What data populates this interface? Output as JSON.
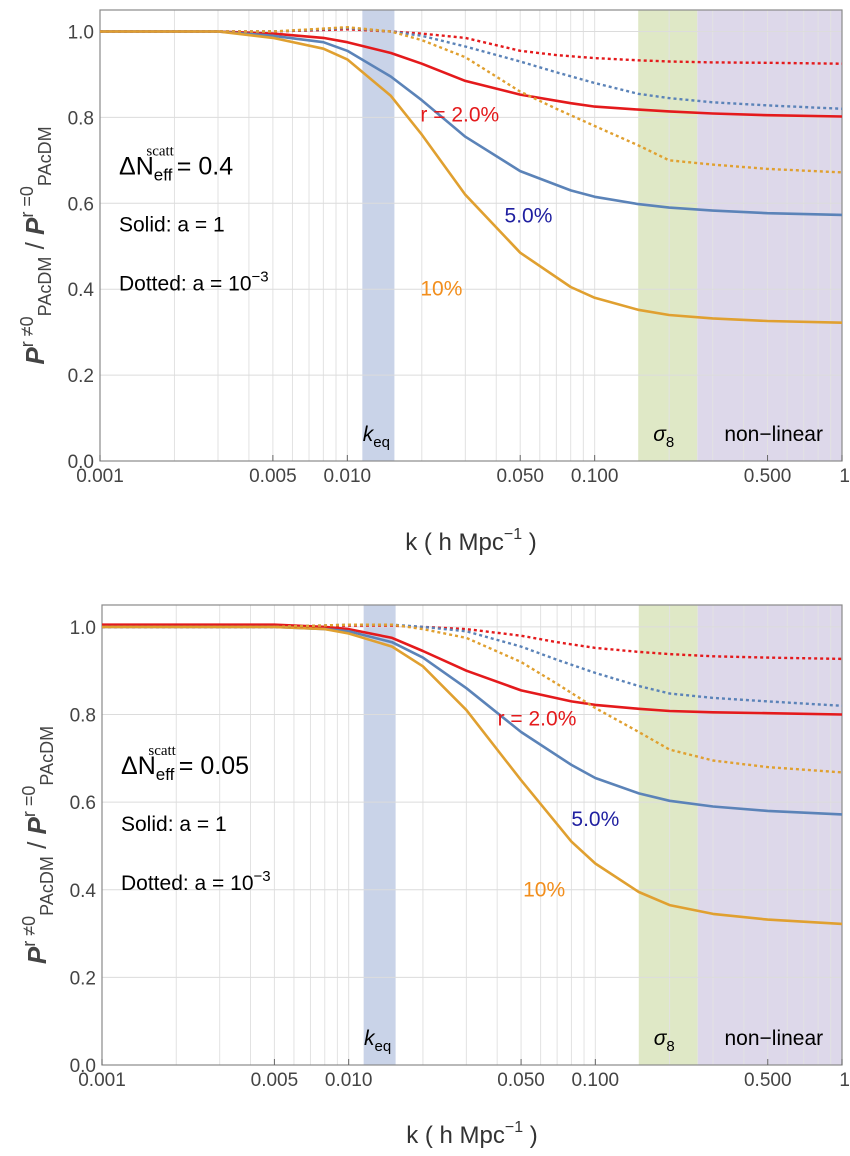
{
  "chart_data": [
    {
      "type": "line",
      "xlabel_main": "k ( h Mpc",
      "xlabel_sup": "−1",
      "xlabel_tail": ")",
      "ylabel_num": "P",
      "ylabel_num_sup": "r ≠0",
      "ylabel_num_sub": "PAcDM",
      "ylabel_sep": "/",
      "ylabel_den": "P",
      "ylabel_den_sup": "r =0",
      "ylabel_den_sub": "PAcDM",
      "xscale": "log",
      "xlim": [
        0.001,
        1
      ],
      "ylim": [
        0,
        1.05
      ],
      "xticks": [
        {
          "v": 0.001,
          "label": "0.001"
        },
        {
          "v": 0.005,
          "label": "0.005"
        },
        {
          "v": 0.01,
          "label": "0.010"
        },
        {
          "v": 0.05,
          "label": "0.050"
        },
        {
          "v": 0.1,
          "label": "0.100"
        },
        {
          "v": 0.5,
          "label": "0.500"
        },
        {
          "v": 1,
          "label": "1"
        }
      ],
      "yticks": [
        {
          "v": 0,
          "label": "0.0"
        },
        {
          "v": 0.2,
          "label": "0.2"
        },
        {
          "v": 0.4,
          "label": "0.4"
        },
        {
          "v": 0.6,
          "label": "0.6"
        },
        {
          "v": 0.8,
          "label": "0.8"
        },
        {
          "v": 1,
          "label": "1.0"
        }
      ],
      "grid": true,
      "regions": [
        {
          "name": "keq",
          "label_main": "k",
          "label_sub": "eq",
          "x0": 0.0115,
          "x1": 0.0155,
          "color": "#c9d3e8"
        },
        {
          "name": "sigma8",
          "label_main": "σ",
          "label_sub": "8",
          "x0": 0.15,
          "x1": 0.26,
          "color": "#dfe8c6"
        },
        {
          "name": "nonlinear",
          "label": "non−linear",
          "x0": 0.26,
          "x1": 1.0,
          "color": "#ddd8ea"
        }
      ],
      "annotation": {
        "delta_prefix": "ΔN",
        "delta_sub": "eff",
        "delta_sup": "scatt",
        "delta_value": "= 0.4",
        "solid_label": "Solid: a = 1",
        "dotted_prefix": "Dotted: a = 10",
        "dotted_sup": "−3"
      },
      "curve_labels": [
        {
          "text": "r = 2.0%",
          "color": "#e41a1c",
          "k": 0.0285,
          "y": 0.79
        },
        {
          "text": "5.0%",
          "color": "#1f1fa0",
          "k": 0.054,
          "y": 0.555
        },
        {
          "text": "10%",
          "color": "#f28e1c",
          "k": 0.024,
          "y": 0.385
        }
      ],
      "series": [
        {
          "r": "2.0%",
          "epoch": "a = 1",
          "style": "solid",
          "color": "#e41a1c",
          "x": [
            0.001,
            0.003,
            0.005,
            0.008,
            0.01,
            0.015,
            0.02,
            0.03,
            0.05,
            0.08,
            0.1,
            0.15,
            0.2,
            0.3,
            0.5,
            1
          ],
          "y": [
            1.0,
            1.0,
            0.995,
            0.985,
            0.975,
            0.95,
            0.925,
            0.885,
            0.853,
            0.833,
            0.825,
            0.818,
            0.814,
            0.809,
            0.805,
            0.802
          ]
        },
        {
          "r": "5.0%",
          "epoch": "a = 1",
          "style": "solid",
          "color": "#5b83b8",
          "x": [
            0.001,
            0.003,
            0.005,
            0.008,
            0.01,
            0.015,
            0.02,
            0.03,
            0.05,
            0.08,
            0.1,
            0.15,
            0.2,
            0.3,
            0.5,
            1
          ],
          "y": [
            1.0,
            1.0,
            0.99,
            0.975,
            0.955,
            0.895,
            0.84,
            0.755,
            0.675,
            0.63,
            0.615,
            0.598,
            0.59,
            0.583,
            0.577,
            0.573
          ]
        },
        {
          "r": "10%",
          "epoch": "a = 1",
          "style": "solid",
          "color": "#e0a030",
          "x": [
            0.001,
            0.003,
            0.005,
            0.008,
            0.01,
            0.015,
            0.02,
            0.03,
            0.05,
            0.08,
            0.1,
            0.15,
            0.2,
            0.3,
            0.5,
            1
          ],
          "y": [
            1.0,
            1.0,
            0.985,
            0.96,
            0.935,
            0.85,
            0.76,
            0.62,
            0.485,
            0.405,
            0.38,
            0.352,
            0.34,
            0.332,
            0.326,
            0.322
          ]
        },
        {
          "r": "2.0%",
          "epoch": "a = 10^-3",
          "style": "dotted",
          "color": "#e41a1c",
          "x": [
            0.001,
            0.005,
            0.01,
            0.015,
            0.02,
            0.03,
            0.05,
            0.07,
            0.1,
            0.15,
            0.2,
            0.3,
            0.5,
            1
          ],
          "y": [
            1.0,
            1.0,
            1.005,
            1.0,
            0.995,
            0.985,
            0.955,
            0.945,
            0.938,
            0.933,
            0.93,
            0.928,
            0.927,
            0.925
          ]
        },
        {
          "r": "5.0%",
          "epoch": "a = 10^-3",
          "style": "dotted",
          "color": "#5b83b8",
          "x": [
            0.001,
            0.005,
            0.01,
            0.015,
            0.02,
            0.03,
            0.05,
            0.07,
            0.1,
            0.15,
            0.2,
            0.3,
            0.5,
            1
          ],
          "y": [
            1.0,
            1.0,
            1.008,
            1.0,
            0.99,
            0.965,
            0.93,
            0.905,
            0.88,
            0.855,
            0.845,
            0.835,
            0.828,
            0.82
          ]
        },
        {
          "r": "10%",
          "epoch": "a = 10^-3",
          "style": "dotted",
          "color": "#e0a030",
          "x": [
            0.001,
            0.005,
            0.01,
            0.015,
            0.02,
            0.03,
            0.05,
            0.07,
            0.1,
            0.15,
            0.2,
            0.3,
            0.5,
            1
          ],
          "y": [
            1.0,
            1.0,
            1.01,
            1.0,
            0.98,
            0.94,
            0.86,
            0.82,
            0.78,
            0.735,
            0.7,
            0.69,
            0.68,
            0.672
          ]
        }
      ]
    },
    {
      "type": "line",
      "xlabel_main": "k ( h Mpc",
      "xlabel_sup": "−1",
      "xlabel_tail": ")",
      "ylabel_num": "P",
      "ylabel_num_sup": "r ≠0",
      "ylabel_num_sub": "PAcDM",
      "ylabel_sep": "/",
      "ylabel_den": "P",
      "ylabel_den_sup": "r =0",
      "ylabel_den_sub": "PAcDM",
      "xscale": "log",
      "xlim": [
        0.001,
        1
      ],
      "ylim": [
        0,
        1.05
      ],
      "xticks": [
        {
          "v": 0.001,
          "label": "0.001"
        },
        {
          "v": 0.005,
          "label": "0.005"
        },
        {
          "v": 0.01,
          "label": "0.010"
        },
        {
          "v": 0.05,
          "label": "0.050"
        },
        {
          "v": 0.1,
          "label": "0.100"
        },
        {
          "v": 0.5,
          "label": "0.500"
        },
        {
          "v": 1,
          "label": "1"
        }
      ],
      "yticks": [
        {
          "v": 0,
          "label": "0.0"
        },
        {
          "v": 0.2,
          "label": "0.2"
        },
        {
          "v": 0.4,
          "label": "0.4"
        },
        {
          "v": 0.6,
          "label": "0.6"
        },
        {
          "v": 0.8,
          "label": "0.8"
        },
        {
          "v": 1,
          "label": "1.0"
        }
      ],
      "grid": true,
      "regions": [
        {
          "name": "keq",
          "label_main": "k",
          "label_sub": "eq",
          "x0": 0.0115,
          "x1": 0.0155,
          "color": "#c9d3e8"
        },
        {
          "name": "sigma8",
          "label_main": "σ",
          "label_sub": "8",
          "x0": 0.15,
          "x1": 0.26,
          "color": "#dfe8c6"
        },
        {
          "name": "nonlinear",
          "label": "non−linear",
          "x0": 0.26,
          "x1": 1.0,
          "color": "#ddd8ea"
        }
      ],
      "annotation": {
        "delta_prefix": "ΔN",
        "delta_sub": "eff",
        "delta_sup": "scatt",
        "delta_value": "= 0.05",
        "solid_label": "Solid: a = 1",
        "dotted_prefix": "Dotted: a = 10",
        "dotted_sup": "−3"
      },
      "curve_labels": [
        {
          "text": "r = 2.0%",
          "color": "#e41a1c",
          "k": 0.058,
          "y": 0.775
        },
        {
          "text": "5.0%",
          "color": "#1f1fa0",
          "k": 0.1,
          "y": 0.545
        },
        {
          "text": "10%",
          "color": "#f28e1c",
          "k": 0.062,
          "y": 0.385
        }
      ],
      "series": [
        {
          "r": "2.0%",
          "epoch": "a = 1",
          "style": "solid",
          "color": "#e41a1c",
          "x": [
            0.001,
            0.003,
            0.005,
            0.008,
            0.01,
            0.015,
            0.02,
            0.03,
            0.05,
            0.08,
            0.1,
            0.15,
            0.2,
            0.3,
            0.5,
            1
          ],
          "y": [
            1.005,
            1.005,
            1.005,
            1.0,
            0.995,
            0.975,
            0.945,
            0.9,
            0.855,
            0.83,
            0.822,
            0.813,
            0.808,
            0.805,
            0.803,
            0.8
          ]
        },
        {
          "r": "5.0%",
          "epoch": "a = 1",
          "style": "solid",
          "color": "#5b83b8",
          "x": [
            0.001,
            0.003,
            0.005,
            0.008,
            0.01,
            0.015,
            0.02,
            0.03,
            0.05,
            0.08,
            0.1,
            0.15,
            0.2,
            0.3,
            0.5,
            1
          ],
          "y": [
            1.0,
            1.0,
            1.0,
            0.995,
            0.99,
            0.965,
            0.93,
            0.86,
            0.76,
            0.685,
            0.655,
            0.62,
            0.603,
            0.59,
            0.58,
            0.572
          ]
        },
        {
          "r": "10%",
          "epoch": "a = 1",
          "style": "solid",
          "color": "#e0a030",
          "x": [
            0.001,
            0.003,
            0.005,
            0.008,
            0.01,
            0.015,
            0.02,
            0.03,
            0.05,
            0.08,
            0.1,
            0.15,
            0.2,
            0.3,
            0.5,
            1
          ],
          "y": [
            1.0,
            1.0,
            1.0,
            0.995,
            0.985,
            0.955,
            0.91,
            0.81,
            0.65,
            0.51,
            0.46,
            0.395,
            0.365,
            0.345,
            0.332,
            0.322
          ]
        },
        {
          "r": "2.0%",
          "epoch": "a = 10^-3",
          "style": "dotted",
          "color": "#e41a1c",
          "x": [
            0.001,
            0.005,
            0.01,
            0.015,
            0.02,
            0.03,
            0.05,
            0.07,
            0.1,
            0.15,
            0.2,
            0.3,
            0.5,
            1
          ],
          "y": [
            1.0,
            1.0,
            1.003,
            1.003,
            1.0,
            0.995,
            0.98,
            0.965,
            0.952,
            0.943,
            0.938,
            0.933,
            0.93,
            0.927
          ]
        },
        {
          "r": "5.0%",
          "epoch": "a = 10^-3",
          "style": "dotted",
          "color": "#5b83b8",
          "x": [
            0.001,
            0.005,
            0.01,
            0.015,
            0.02,
            0.03,
            0.05,
            0.07,
            0.1,
            0.15,
            0.2,
            0.3,
            0.5,
            1
          ],
          "y": [
            1.0,
            1.0,
            1.005,
            1.005,
            1.0,
            0.99,
            0.955,
            0.925,
            0.895,
            0.865,
            0.848,
            0.838,
            0.83,
            0.82
          ]
        },
        {
          "r": "10%",
          "epoch": "a = 10^-3",
          "style": "dotted",
          "color": "#e0a030",
          "x": [
            0.001,
            0.005,
            0.01,
            0.015,
            0.02,
            0.03,
            0.05,
            0.07,
            0.1,
            0.15,
            0.2,
            0.3,
            0.5,
            1
          ],
          "y": [
            1.0,
            1.0,
            1.005,
            1.005,
            0.995,
            0.975,
            0.92,
            0.87,
            0.815,
            0.76,
            0.72,
            0.695,
            0.68,
            0.668
          ]
        }
      ]
    }
  ]
}
